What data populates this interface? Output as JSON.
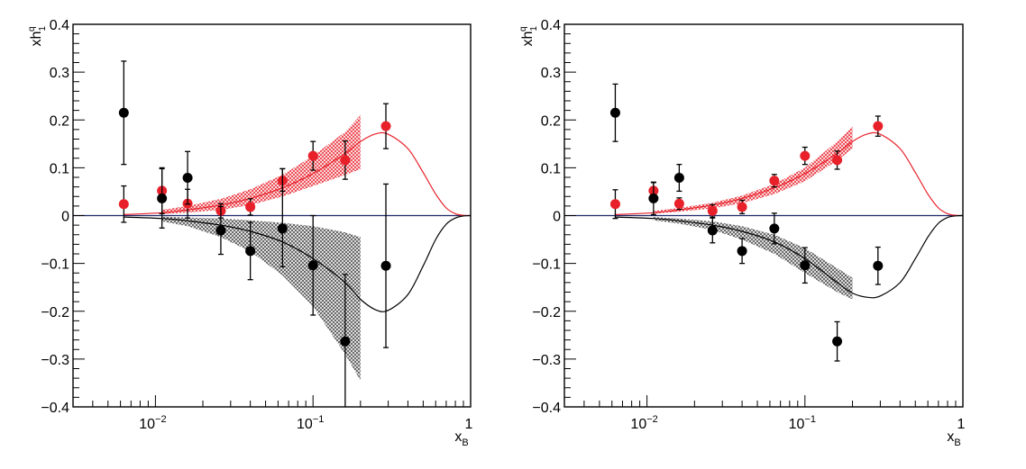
{
  "chart_data": [
    {
      "type": "scatter",
      "panel": "left",
      "title": "",
      "xlabel": "x_B",
      "ylabel": "xh_1^q",
      "xscale": "log",
      "xlim": [
        0.003,
        1
      ],
      "ylim": [
        -0.4,
        0.4
      ],
      "grid": false,
      "legend": null,
      "x_tick_labels": [
        {
          "value": 0.01,
          "base": "10",
          "exp": "−2"
        },
        {
          "value": 0.1,
          "base": "10",
          "exp": "−1"
        },
        {
          "value": 1,
          "base": "1",
          "exp": ""
        }
      ],
      "y_tick_labels": [
        {
          "value": 0.4,
          "label": "0.4"
        },
        {
          "value": 0.3,
          "label": "0.3"
        },
        {
          "value": 0.2,
          "label": "0.2"
        },
        {
          "value": 0.1,
          "label": "0.1"
        },
        {
          "value": 0,
          "label": "0"
        },
        {
          "value": -0.1,
          "label": "−0.1"
        },
        {
          "value": -0.2,
          "label": "−0.2"
        },
        {
          "value": -0.3,
          "label": "−0.3"
        },
        {
          "value": -0.4,
          "label": "−0.4"
        }
      ],
      "zero_line_color": "#1f2a6b",
      "series": [
        {
          "name": "up (red)",
          "color": "#e8202a",
          "points": [
            {
              "x": 0.0063,
              "y": 0.024,
              "err_up": 0.038,
              "err_down": 0.038
            },
            {
              "x": 0.011,
              "y": 0.052,
              "err_up": 0.048,
              "err_down": 0.048
            },
            {
              "x": 0.016,
              "y": 0.025,
              "err_up": 0.03,
              "err_down": 0.03
            },
            {
              "x": 0.026,
              "y": 0.01,
              "err_up": 0.015,
              "err_down": 0.015
            },
            {
              "x": 0.04,
              "y": 0.018,
              "err_up": 0.017,
              "err_down": 0.017
            },
            {
              "x": 0.064,
              "y": 0.073,
              "err_up": 0.025,
              "err_down": 0.022
            },
            {
              "x": 0.1,
              "y": 0.125,
              "err_up": 0.03,
              "err_down": 0.03
            },
            {
              "x": 0.16,
              "y": 0.116,
              "err_up": 0.04,
              "err_down": 0.04
            },
            {
              "x": 0.29,
              "y": 0.187,
              "err_up": 0.047,
              "err_down": 0.047
            }
          ],
          "band": {
            "x": [
              0.011,
              0.016,
              0.026,
              0.04,
              0.064,
              0.1,
              0.16,
              0.2
            ],
            "lower": [
              0.003,
              0.006,
              0.012,
              0.022,
              0.04,
              0.062,
              0.085,
              0.097
            ],
            "upper": [
              0.012,
              0.02,
              0.035,
              0.055,
              0.085,
              0.125,
              0.175,
              0.21
            ]
          },
          "curve": {
            "x": [
              0.0063,
              0.011,
              0.016,
              0.026,
              0.04,
              0.064,
              0.1,
              0.16,
              0.2,
              0.25,
              0.3,
              0.4,
              0.5,
              0.6,
              0.7,
              0.8,
              0.9,
              1.0
            ],
            "y": [
              0.002,
              0.006,
              0.012,
              0.022,
              0.036,
              0.058,
              0.088,
              0.13,
              0.155,
              0.171,
              0.17,
              0.14,
              0.09,
              0.045,
              0.016,
              0.004,
              0.0005,
              0.0
            ]
          }
        },
        {
          "name": "down (black)",
          "color": "#000000",
          "points": [
            {
              "x": 0.0063,
              "y": 0.215,
              "err_up": 0.108,
              "err_down": 0.108
            },
            {
              "x": 0.011,
              "y": 0.036,
              "err_up": 0.062,
              "err_down": 0.062
            },
            {
              "x": 0.016,
              "y": 0.079,
              "err_up": 0.055,
              "err_down": 0.055
            },
            {
              "x": 0.026,
              "y": -0.031,
              "err_up": 0.05,
              "err_down": 0.05
            },
            {
              "x": 0.04,
              "y": -0.074,
              "err_up": 0.06,
              "err_down": 0.06
            },
            {
              "x": 0.064,
              "y": -0.027,
              "err_up": 0.125,
              "err_down": 0.08
            },
            {
              "x": 0.1,
              "y": -0.104,
              "err_up": 0.104,
              "err_down": 0.104
            },
            {
              "x": 0.16,
              "y": -0.263,
              "err_up": 0.14,
              "err_down": 0.14
            },
            {
              "x": 0.29,
              "y": -0.105,
              "err_up": 0.171,
              "err_down": 0.171
            }
          ],
          "band": {
            "x": [
              0.011,
              0.016,
              0.026,
              0.04,
              0.064,
              0.1,
              0.16,
              0.2
            ],
            "lower": [
              -0.012,
              -0.022,
              -0.045,
              -0.075,
              -0.125,
              -0.19,
              -0.29,
              -0.345
            ],
            "upper": [
              -0.002,
              -0.004,
              -0.006,
              -0.01,
              -0.015,
              -0.022,
              -0.035,
              -0.045
            ]
          },
          "curve": {
            "x": [
              0.0063,
              0.011,
              0.016,
              0.026,
              0.04,
              0.064,
              0.1,
              0.16,
              0.2,
              0.25,
              0.3,
              0.4,
              0.5,
              0.6,
              0.7,
              0.8,
              0.9,
              1.0
            ],
            "y": [
              -0.003,
              -0.006,
              -0.011,
              -0.02,
              -0.033,
              -0.055,
              -0.09,
              -0.14,
              -0.175,
              -0.197,
              -0.198,
              -0.165,
              -0.105,
              -0.05,
              -0.018,
              -0.005,
              -0.0008,
              0.0
            ]
          }
        }
      ]
    },
    {
      "type": "scatter",
      "panel": "right",
      "title": "",
      "xlabel": "x_B",
      "ylabel": "xh_1^q",
      "xscale": "log",
      "xlim": [
        0.003,
        1
      ],
      "ylim": [
        -0.4,
        0.4
      ],
      "grid": false,
      "legend": null,
      "x_tick_labels": [
        {
          "value": 0.01,
          "base": "10",
          "exp": "−2"
        },
        {
          "value": 0.1,
          "base": "10",
          "exp": "−1"
        },
        {
          "value": 1,
          "base": "1",
          "exp": ""
        }
      ],
      "y_tick_labels": [
        {
          "value": 0.4,
          "label": "0.4"
        },
        {
          "value": 0.3,
          "label": "0.3"
        },
        {
          "value": 0.2,
          "label": "0.2"
        },
        {
          "value": 0.1,
          "label": "0.1"
        },
        {
          "value": 0,
          "label": "0"
        },
        {
          "value": -0.1,
          "label": "−0.1"
        },
        {
          "value": -0.2,
          "label": "−0.2"
        },
        {
          "value": -0.3,
          "label": "−0.3"
        },
        {
          "value": -0.4,
          "label": "−0.4"
        }
      ],
      "zero_line_color": "#1f2a6b",
      "series": [
        {
          "name": "up (red)",
          "color": "#e8202a",
          "points": [
            {
              "x": 0.0063,
              "y": 0.024,
              "err_up": 0.03,
              "err_down": 0.03
            },
            {
              "x": 0.011,
              "y": 0.052,
              "err_up": 0.017,
              "err_down": 0.017
            },
            {
              "x": 0.016,
              "y": 0.025,
              "err_up": 0.012,
              "err_down": 0.012
            },
            {
              "x": 0.026,
              "y": 0.01,
              "err_up": 0.013,
              "err_down": 0.013
            },
            {
              "x": 0.04,
              "y": 0.018,
              "err_up": 0.014,
              "err_down": 0.014
            },
            {
              "x": 0.064,
              "y": 0.073,
              "err_up": 0.013,
              "err_down": 0.013
            },
            {
              "x": 0.1,
              "y": 0.125,
              "err_up": 0.018,
              "err_down": 0.018
            },
            {
              "x": 0.16,
              "y": 0.116,
              "err_up": 0.019,
              "err_down": 0.019
            },
            {
              "x": 0.29,
              "y": 0.187,
              "err_up": 0.021,
              "err_down": 0.021
            }
          ],
          "band": {
            "x": [
              0.011,
              0.016,
              0.026,
              0.04,
              0.064,
              0.1,
              0.16,
              0.2
            ],
            "lower": [
              0.004,
              0.008,
              0.015,
              0.026,
              0.045,
              0.072,
              0.115,
              0.14
            ],
            "upper": [
              0.01,
              0.016,
              0.027,
              0.042,
              0.066,
              0.1,
              0.155,
              0.187
            ]
          },
          "curve": {
            "x": [
              0.0063,
              0.011,
              0.016,
              0.026,
              0.04,
              0.064,
              0.1,
              0.16,
              0.2,
              0.25,
              0.3,
              0.4,
              0.5,
              0.6,
              0.7,
              0.8,
              0.9,
              1.0
            ],
            "y": [
              0.002,
              0.006,
              0.012,
              0.022,
              0.036,
              0.058,
              0.088,
              0.13,
              0.155,
              0.171,
              0.17,
              0.14,
              0.09,
              0.045,
              0.016,
              0.004,
              0.0005,
              0.0
            ]
          }
        },
        {
          "name": "down (black)",
          "color": "#000000",
          "points": [
            {
              "x": 0.0063,
              "y": 0.215,
              "err_up": 0.06,
              "err_down": 0.06
            },
            {
              "x": 0.011,
              "y": 0.036,
              "err_up": 0.034,
              "err_down": 0.034
            },
            {
              "x": 0.016,
              "y": 0.079,
              "err_up": 0.028,
              "err_down": 0.028
            },
            {
              "x": 0.026,
              "y": -0.031,
              "err_up": 0.026,
              "err_down": 0.026
            },
            {
              "x": 0.04,
              "y": -0.074,
              "err_up": 0.026,
              "err_down": 0.026
            },
            {
              "x": 0.064,
              "y": -0.027,
              "err_up": 0.032,
              "err_down": 0.032
            },
            {
              "x": 0.1,
              "y": -0.104,
              "err_up": 0.037,
              "err_down": 0.037
            },
            {
              "x": 0.16,
              "y": -0.263,
              "err_up": 0.041,
              "err_down": 0.041
            },
            {
              "x": 0.29,
              "y": -0.105,
              "err_up": 0.039,
              "err_down": 0.039
            }
          ],
          "band": {
            "x": [
              0.011,
              0.016,
              0.026,
              0.04,
              0.064,
              0.1,
              0.16,
              0.2
            ],
            "lower": [
              -0.01,
              -0.017,
              -0.03,
              -0.05,
              -0.08,
              -0.12,
              -0.16,
              -0.175
            ],
            "upper": [
              -0.003,
              -0.006,
              -0.012,
              -0.022,
              -0.04,
              -0.068,
              -0.11,
              -0.13
            ]
          },
          "curve": {
            "x": [
              0.0063,
              0.011,
              0.016,
              0.026,
              0.04,
              0.064,
              0.1,
              0.16,
              0.2,
              0.25,
              0.3,
              0.4,
              0.5,
              0.6,
              0.7,
              0.8,
              0.9,
              1.0
            ],
            "y": [
              -0.003,
              -0.006,
              -0.011,
              -0.02,
              -0.033,
              -0.055,
              -0.09,
              -0.14,
              -0.162,
              -0.171,
              -0.168,
              -0.14,
              -0.09,
              -0.045,
              -0.016,
              -0.004,
              -0.0005,
              0.0
            ]
          }
        }
      ]
    }
  ]
}
